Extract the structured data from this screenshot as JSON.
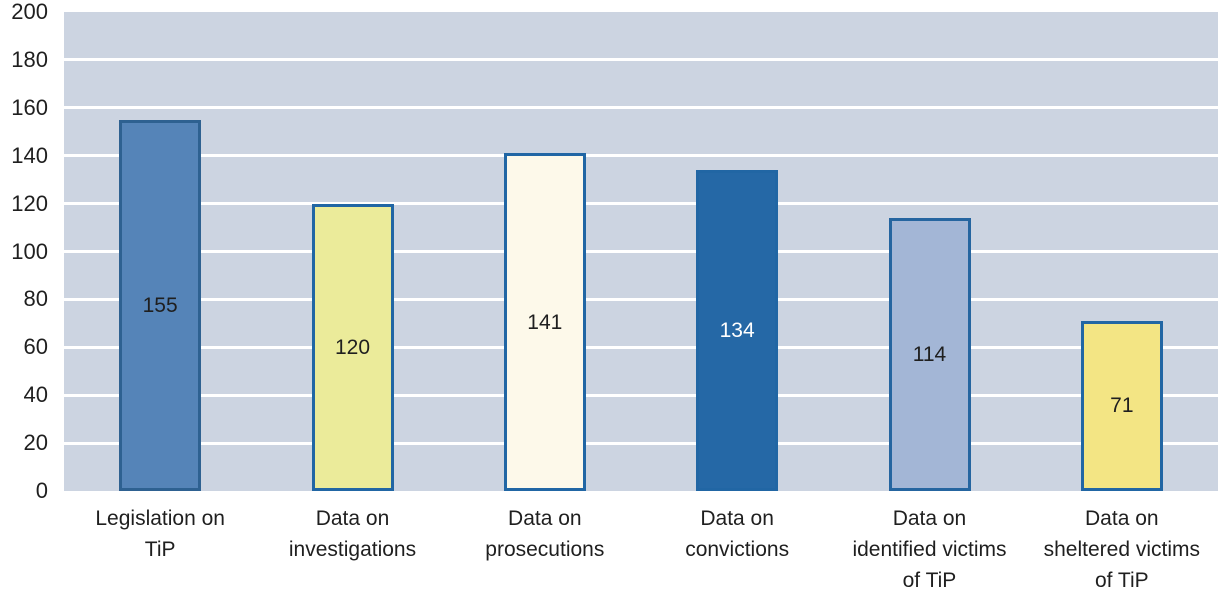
{
  "chart_data": {
    "type": "bar",
    "title": "",
    "xlabel": "",
    "ylabel": "",
    "categories": [
      "Legislation on\nTiP",
      "Data on\ninvestigations",
      "Data on\nprosecutions",
      "Data on\nconvictions",
      "Data on\nidentified victims\nof TiP",
      "Data on\nsheltered victims\nof TiP"
    ],
    "values": [
      155,
      120,
      141,
      134,
      114,
      71
    ],
    "ylim": [
      0,
      200
    ],
    "yticks": [
      0,
      20,
      40,
      60,
      80,
      100,
      120,
      140,
      160,
      180,
      200
    ],
    "grid": "horizontal",
    "legend": "none",
    "colors": {
      "plot_background": "#ccd4e1",
      "gridline": "#ffffff",
      "axis_text": "#1f1f1f",
      "bar_fills": [
        "#5584b8",
        "#ebeb9a",
        "#fdf9ea",
        "#2568a6",
        "#a3b6d6",
        "#f3e584"
      ],
      "bar_borders": [
        "#2e6191",
        "#2166a4",
        "#2166a4",
        "#2166a4",
        "#2565a0",
        "#2166a4"
      ],
      "value_labels": [
        "#1f1f1f",
        "#1f1f1f",
        "#1f1f1f",
        "#ffffff",
        "#1f1f1f",
        "#1f1f1f"
      ]
    }
  }
}
